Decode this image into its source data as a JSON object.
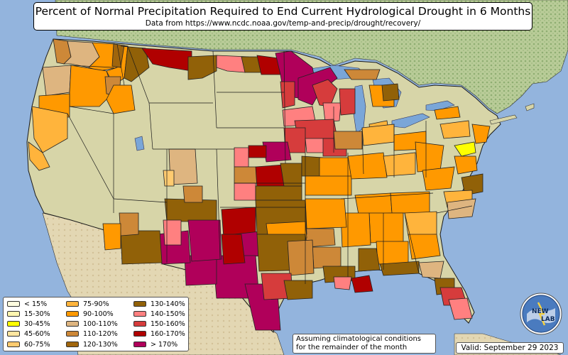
{
  "header": {
    "title": "Percent of Normal Precipitation Required to End Current Hydrological Drought in 6 Months",
    "subtitle": "Data from https://www.ncdc.noaa.gov/temp-and-precip/drought/recovery/"
  },
  "legend": {
    "items": [
      {
        "label": "< 15%",
        "color": "#fffde0"
      },
      {
        "label": "15-30%",
        "color": "#fff6b0"
      },
      {
        "label": "30-45%",
        "color": "#ffff00"
      },
      {
        "label": "45-60%",
        "color": "#ffe6a0"
      },
      {
        "label": "60-75%",
        "color": "#ffcb70"
      },
      {
        "label": "75-90%",
        "color": "#ffb43c"
      },
      {
        "label": "90-100%",
        "color": "#ff9900"
      },
      {
        "label": "100-110%",
        "color": "#deb580"
      },
      {
        "label": "110-120%",
        "color": "#cd8838"
      },
      {
        "label": "120-130%",
        "color": "#a0650c"
      },
      {
        "label": "130-140%",
        "color": "#916108"
      },
      {
        "label": "140-150%",
        "color": "#ff8080"
      },
      {
        "label": "150-160%",
        "color": "#d63c3c"
      },
      {
        "label": "160-170%",
        "color": "#b00000"
      },
      {
        "label": "> 170%",
        "color": "#b0005a"
      }
    ]
  },
  "footer": {
    "assumption_line1": "Assuming climatological conditions",
    "assumption_line2": "for the remainder of the month",
    "valid": "Valid: September 29 2023"
  },
  "logo": {
    "text_top": "NEW",
    "text_bottom": "LAB"
  },
  "colors": {
    "ocean": "#93b4dd",
    "land": "#d7d5a8",
    "mexico": "#e2d6b2",
    "canada": "#c4d2a6",
    "lakes": "#7aa6d8",
    "borders": "#1a1a1a"
  }
}
